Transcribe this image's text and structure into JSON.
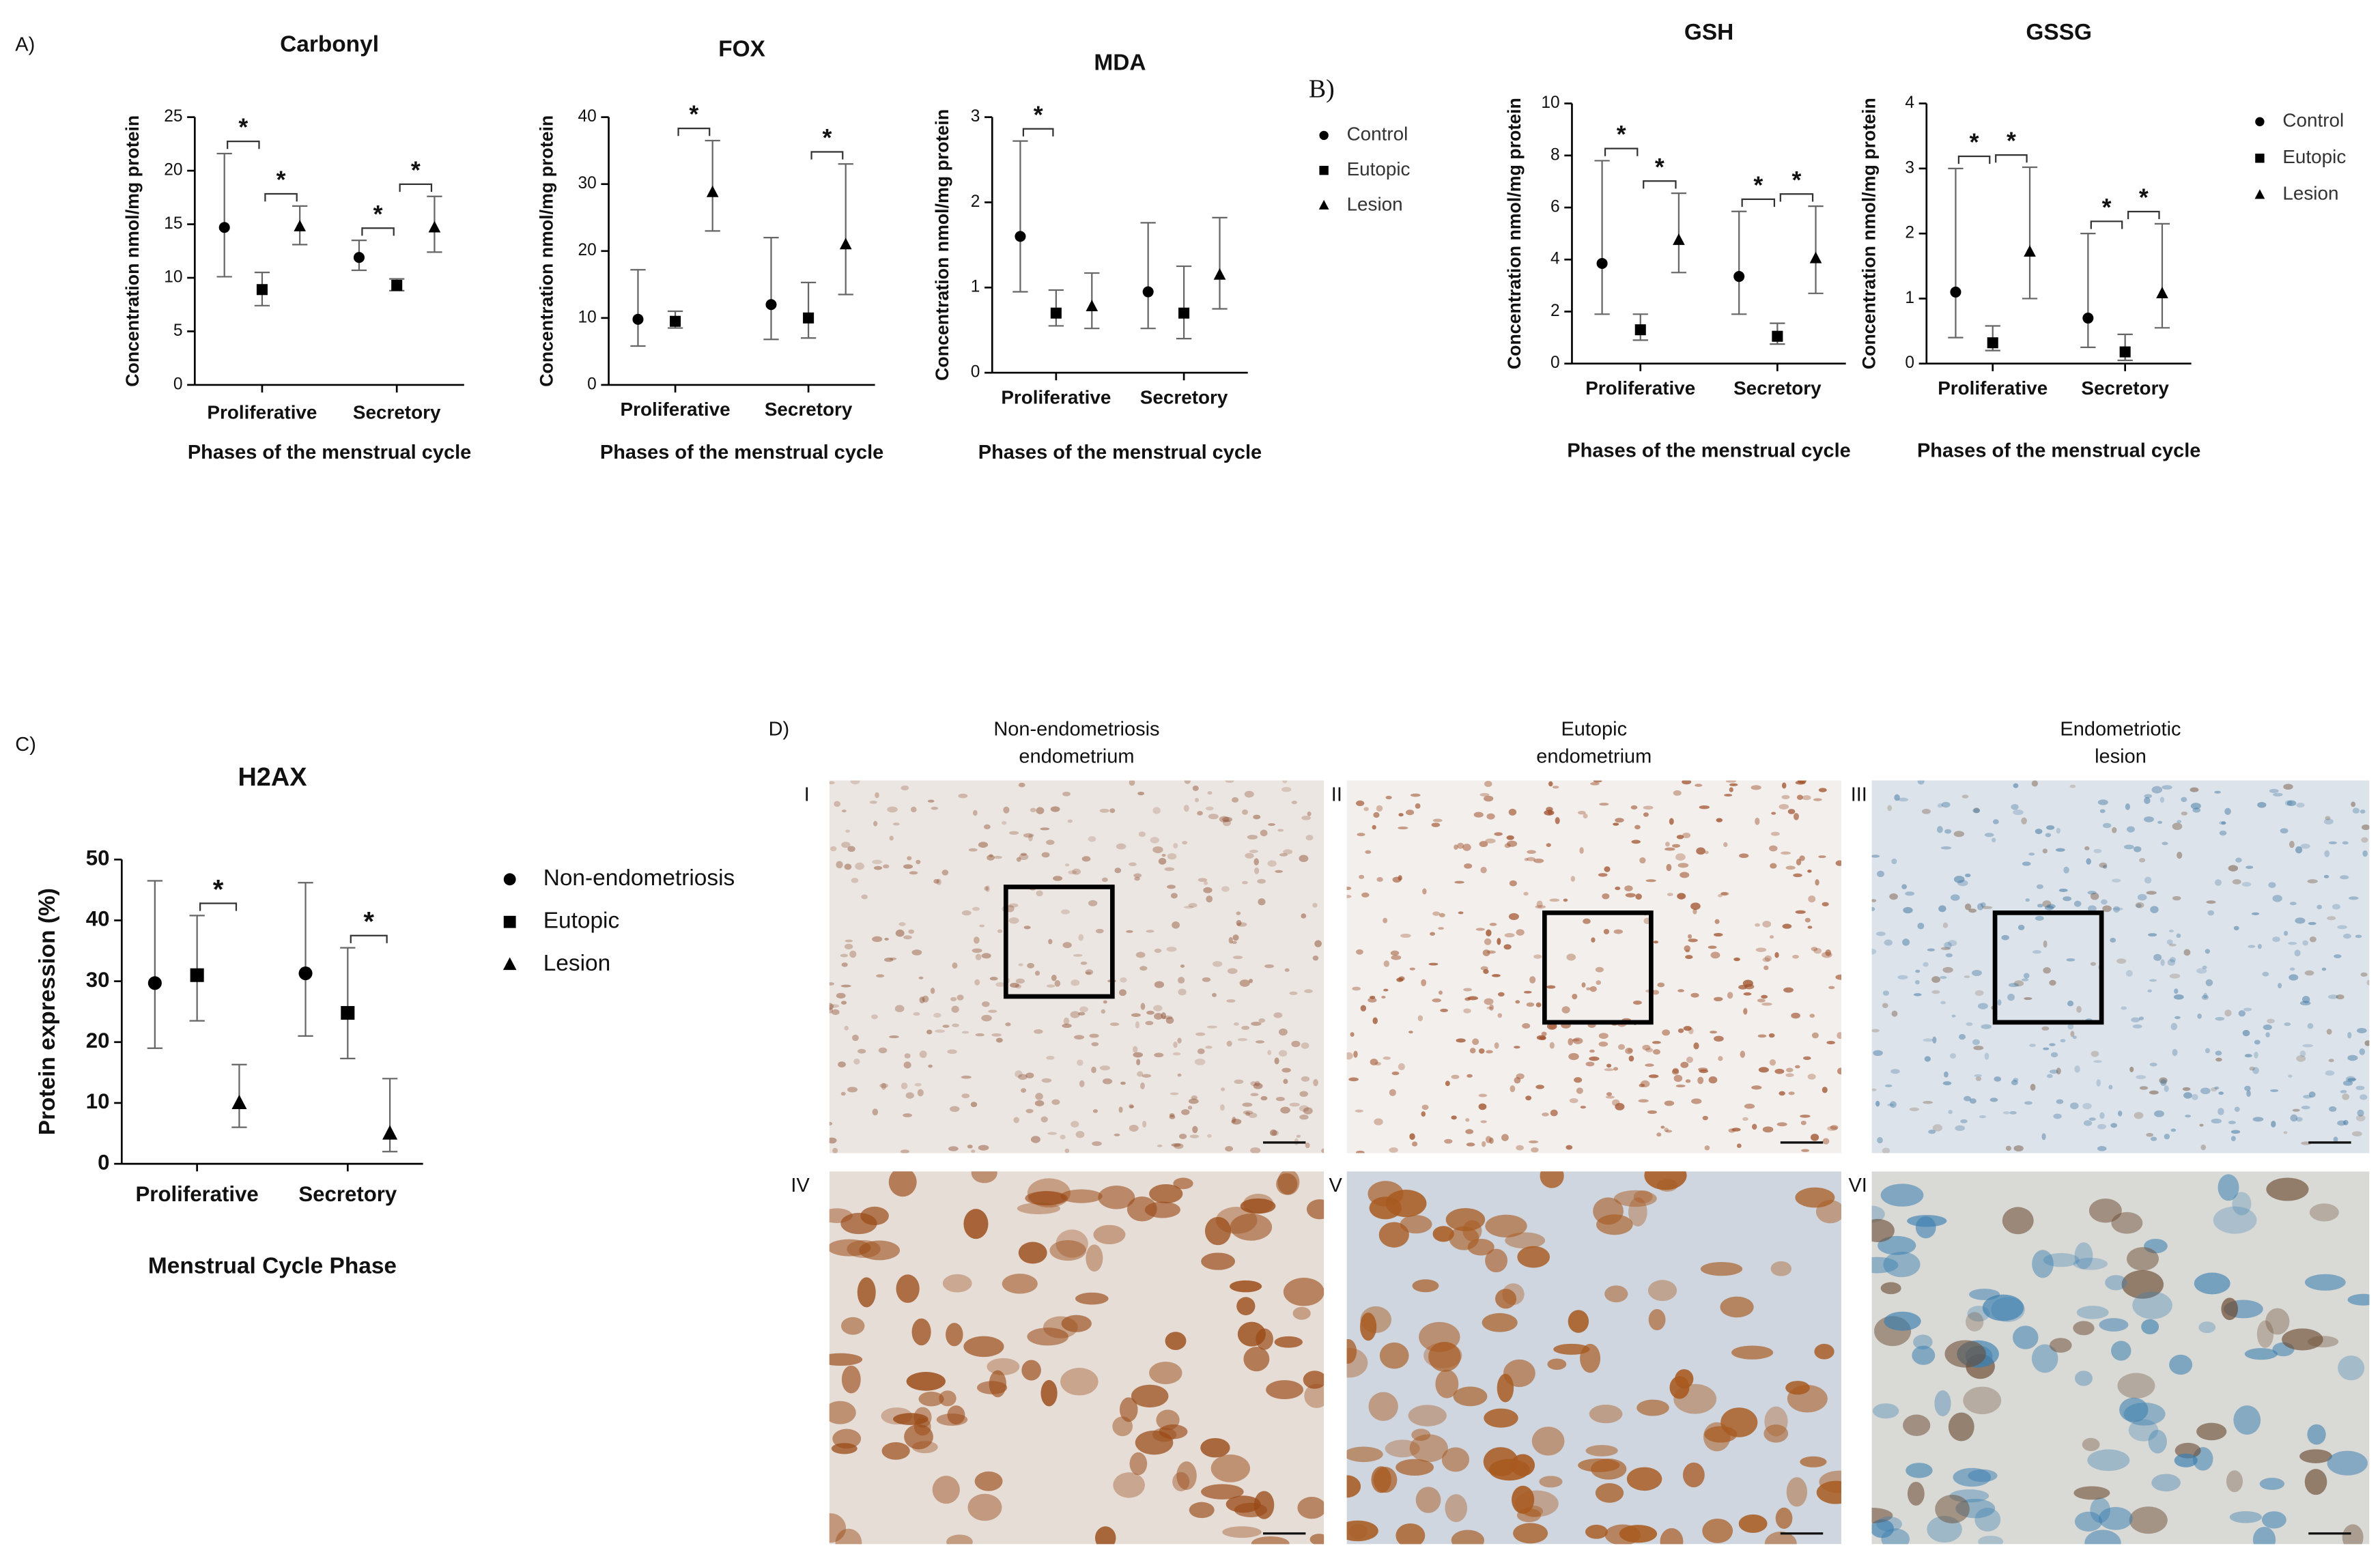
{
  "figure": {
    "panel_labels": [
      "A)",
      "B)",
      "C)",
      "D)"
    ],
    "histology": {
      "columns": [
        [
          "Non-endometriosis",
          "endometrium"
        ],
        [
          "Eutopic",
          "endometrium"
        ],
        [
          "Endometriotic",
          "lesion"
        ]
      ],
      "numerals": [
        "I",
        "II",
        "III",
        "IV",
        "V",
        "VI"
      ]
    }
  },
  "chart_data": [
    {
      "type": "dot",
      "title": "Carbonyl",
      "xlabel": "Phases of the menstrual cycle",
      "ylabel": "Concentration nmol/mg protein",
      "categories": [
        "Proliferative",
        "Secretory"
      ],
      "ylim": [
        0,
        25
      ],
      "yticks": [
        0,
        5,
        10,
        15,
        20,
        25
      ],
      "legend": false,
      "series": [
        {
          "name": "Control",
          "marker": "circle",
          "color": "#000000",
          "values": [
            14.7,
            11.9
          ],
          "lower": [
            10.1,
            10.7
          ],
          "upper": [
            21.6,
            13.5
          ]
        },
        {
          "name": "Eutopic",
          "marker": "square",
          "color": "#000000",
          "values": [
            8.9,
            9.3
          ],
          "lower": [
            7.4,
            8.8
          ],
          "upper": [
            10.5,
            9.9
          ]
        },
        {
          "name": "Lesion",
          "marker": "triangle",
          "color": "#000000",
          "values": [
            14.8,
            14.7
          ],
          "lower": [
            13.1,
            12.4
          ],
          "upper": [
            16.7,
            17.6
          ]
        }
      ],
      "annotations": [
        {
          "text": "*",
          "category": 0,
          "series": [
            0,
            1
          ]
        },
        {
          "text": "*",
          "category": 0,
          "series": [
            1,
            2
          ]
        },
        {
          "text": "*",
          "category": 1,
          "series": [
            0,
            1
          ]
        },
        {
          "text": "*",
          "category": 1,
          "series": [
            1,
            2
          ]
        }
      ]
    },
    {
      "type": "dot",
      "title": "FOX",
      "xlabel": "Phases of the menstrual cycle",
      "ylabel": "Concentration nmol/mg protein",
      "categories": [
        "Proliferative",
        "Secretory"
      ],
      "ylim": [
        0,
        40
      ],
      "yticks": [
        0,
        10,
        20,
        30,
        40
      ],
      "legend": false,
      "series": [
        {
          "name": "Control",
          "marker": "circle",
          "color": "#000000",
          "values": [
            9.8,
            12
          ],
          "lower": [
            5.8,
            6.8
          ],
          "upper": [
            17.2,
            22
          ]
        },
        {
          "name": "Eutopic",
          "marker": "square",
          "color": "#000000",
          "values": [
            9.5,
            10
          ],
          "lower": [
            8.5,
            7
          ],
          "upper": [
            11,
            15.3
          ]
        },
        {
          "name": "Lesion",
          "marker": "triangle",
          "color": "#000000",
          "values": [
            28.8,
            21
          ],
          "lower": [
            23,
            13.5
          ],
          "upper": [
            36.5,
            33
          ]
        }
      ],
      "annotations": [
        {
          "text": "*",
          "category": 0,
          "series": [
            1,
            2
          ]
        },
        {
          "text": "*",
          "category": 1,
          "series": [
            1,
            2
          ]
        }
      ]
    },
    {
      "type": "dot",
      "title": "MDA",
      "xlabel": "Phases of the menstrual cycle",
      "ylabel": "Concentration nmol/mg protein",
      "categories": [
        "Proliferative",
        "Secretory"
      ],
      "ylim": [
        0,
        3
      ],
      "yticks": [
        0,
        1,
        2,
        3
      ],
      "legend": true,
      "series": [
        {
          "name": "Control",
          "marker": "circle",
          "color": "#000000",
          "values": [
            1.6,
            0.95
          ],
          "lower": [
            0.95,
            0.52
          ],
          "upper": [
            2.72,
            1.76
          ]
        },
        {
          "name": "Eutopic",
          "marker": "square",
          "color": "#000000",
          "values": [
            0.7,
            0.7
          ],
          "lower": [
            0.55,
            0.4
          ],
          "upper": [
            0.97,
            1.25
          ]
        },
        {
          "name": "Lesion",
          "marker": "triangle",
          "color": "#000000",
          "values": [
            0.78,
            1.15
          ],
          "lower": [
            0.52,
            0.75
          ],
          "upper": [
            1.17,
            1.82
          ]
        }
      ],
      "annotations": [
        {
          "text": "*",
          "category": 0,
          "series": [
            0,
            1
          ]
        }
      ]
    },
    {
      "type": "dot",
      "title": "GSH",
      "xlabel": "Phases of the menstrual cycle",
      "ylabel": "Concentration nmol/mg protein",
      "categories": [
        "Proliferative",
        "Secretory"
      ],
      "ylim": [
        0,
        10
      ],
      "yticks": [
        0,
        2,
        4,
        6,
        8,
        10
      ],
      "legend": false,
      "series": [
        {
          "name": "Control",
          "marker": "circle",
          "color": "#000000",
          "values": [
            3.85,
            3.35
          ],
          "lower": [
            1.9,
            1.9
          ],
          "upper": [
            7.8,
            5.85
          ]
        },
        {
          "name": "Eutopic",
          "marker": "square",
          "color": "#000000",
          "values": [
            1.3,
            1.05
          ],
          "lower": [
            0.9,
            0.75
          ],
          "upper": [
            1.9,
            1.55
          ]
        },
        {
          "name": "Lesion",
          "marker": "triangle",
          "color": "#000000",
          "values": [
            4.75,
            4.05
          ],
          "lower": [
            3.5,
            2.7
          ],
          "upper": [
            6.55,
            6.05
          ]
        }
      ],
      "annotations": [
        {
          "text": "*",
          "category": 0,
          "series": [
            0,
            1
          ]
        },
        {
          "text": "*",
          "category": 0,
          "series": [
            1,
            2
          ]
        },
        {
          "text": "*",
          "category": 1,
          "series": [
            0,
            1
          ]
        },
        {
          "text": "*",
          "category": 1,
          "series": [
            1,
            2
          ]
        }
      ]
    },
    {
      "type": "dot",
      "title": "GSSG",
      "xlabel": "Phases of the menstrual cycle",
      "ylabel": "Concentration nmol/mg protein",
      "categories": [
        "Proliferative",
        "Secretory"
      ],
      "ylim": [
        0,
        4
      ],
      "yticks": [
        0,
        1,
        2,
        3,
        4
      ],
      "legend": true,
      "series": [
        {
          "name": "Control",
          "marker": "circle",
          "color": "#000000",
          "values": [
            1.1,
            0.7
          ],
          "lower": [
            0.4,
            0.25
          ],
          "upper": [
            3.0,
            2.0
          ]
        },
        {
          "name": "Eutopic",
          "marker": "square",
          "color": "#000000",
          "values": [
            0.32,
            0.18
          ],
          "lower": [
            0.2,
            0.05
          ],
          "upper": [
            0.58,
            0.45
          ]
        },
        {
          "name": "Lesion",
          "marker": "triangle",
          "color": "#000000",
          "values": [
            1.72,
            1.08
          ],
          "lower": [
            1.0,
            0.55
          ],
          "upper": [
            3.02,
            2.15
          ]
        }
      ],
      "annotations": [
        {
          "text": "*",
          "category": 0,
          "series": [
            0,
            1
          ]
        },
        {
          "text": "*",
          "category": 0,
          "series": [
            1,
            2
          ]
        },
        {
          "text": "*",
          "category": 1,
          "series": [
            0,
            1
          ]
        },
        {
          "text": "*",
          "category": 1,
          "series": [
            1,
            2
          ]
        }
      ]
    },
    {
      "type": "dot",
      "title": "H2AX",
      "xlabel": "Menstrual Cycle Phase",
      "ylabel": "Protein expression (%)",
      "categories": [
        "Proliferative",
        "Secretory"
      ],
      "ylim": [
        0,
        50
      ],
      "yticks": [
        0,
        10,
        20,
        30,
        40,
        50
      ],
      "legend": true,
      "series": [
        {
          "name": "Non-endometriosis",
          "marker": "circle",
          "color": "#000000",
          "values": [
            29.7,
            31.3
          ],
          "lower": [
            19,
            21
          ],
          "upper": [
            46.5,
            46.2
          ]
        },
        {
          "name": "Eutopic",
          "marker": "square",
          "color": "#000000",
          "values": [
            31,
            24.8
          ],
          "lower": [
            23.5,
            17.3
          ],
          "upper": [
            40.8,
            35.5
          ]
        },
        {
          "name": "Lesion",
          "marker": "triangle",
          "color": "#000000",
          "values": [
            10,
            5
          ],
          "lower": [
            6,
            2
          ],
          "upper": [
            16.3,
            14
          ]
        }
      ],
      "annotations": [
        {
          "text": "*",
          "category": 0,
          "series": [
            1,
            2
          ]
        },
        {
          "text": "*",
          "category": 1,
          "series": [
            1,
            2
          ]
        }
      ]
    }
  ]
}
